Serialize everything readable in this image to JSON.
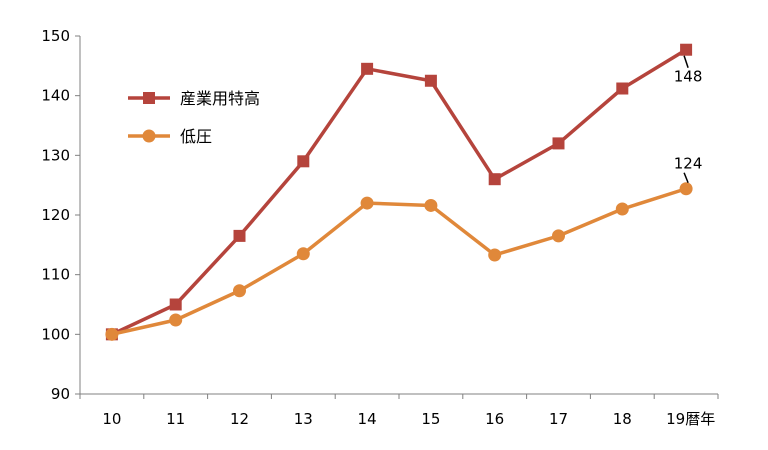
{
  "chart_data": {
    "type": "line",
    "x": [
      "10",
      "11",
      "12",
      "13",
      "14",
      "15",
      "16",
      "17",
      "18",
      "19"
    ],
    "x_unit": "暦年",
    "ylim": [
      90,
      150
    ],
    "yticks": [
      90,
      100,
      110,
      120,
      130,
      140,
      150
    ],
    "grid": false,
    "legend_position": "top-left",
    "series": [
      {
        "name": "産業用特高",
        "color": "#b5443c",
        "marker": "square",
        "values": [
          100,
          105,
          116.5,
          129,
          144.5,
          142.5,
          126,
          132,
          141.2,
          147.7
        ]
      },
      {
        "name": "低圧",
        "color": "#e0883a",
        "marker": "circle",
        "values": [
          100,
          102.4,
          107.3,
          113.5,
          122,
          121.6,
          113.3,
          116.5,
          121,
          124.4
        ]
      }
    ],
    "annotations": [
      {
        "series": 0,
        "index": 9,
        "text": "148"
      },
      {
        "series": 1,
        "index": 9,
        "text": "124"
      }
    ]
  }
}
